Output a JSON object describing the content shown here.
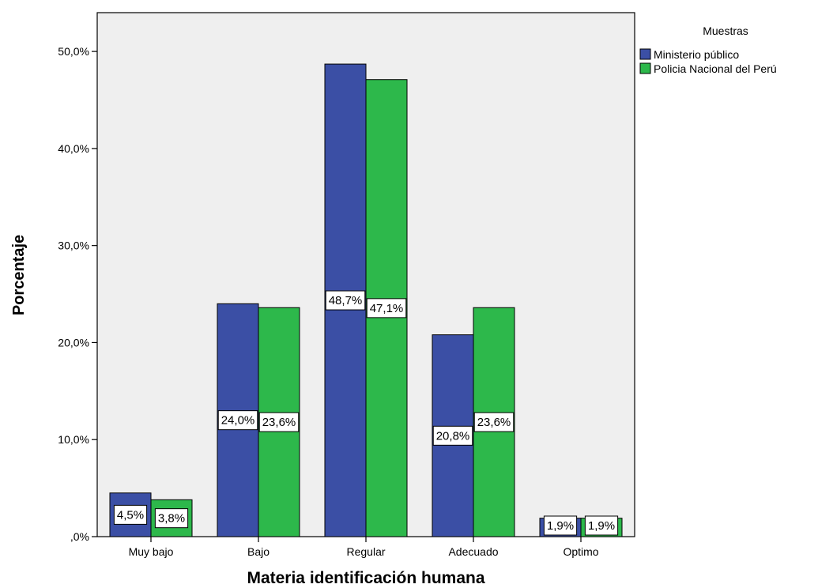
{
  "chart_data": {
    "type": "bar",
    "xlabel": "Materia identificación humana",
    "ylabel": "Porcentaje",
    "categories": [
      "Muy bajo",
      "Bajo",
      "Regular",
      "Adecuado",
      "Optimo"
    ],
    "series": [
      {
        "name": "Ministerio público",
        "values": [
          4.5,
          24.0,
          48.7,
          20.8,
          1.9
        ],
        "labels": [
          "4,5%",
          "24,0%",
          "48,7%",
          "20,8%",
          "1,9%"
        ],
        "color": "#3b4fa5"
      },
      {
        "name": "Policia Nacional del Perú",
        "values": [
          3.8,
          23.6,
          47.1,
          23.6,
          1.9
        ],
        "labels": [
          "3,8%",
          "23,6%",
          "47,1%",
          "23,6%",
          "1,9%"
        ],
        "color": "#2db84b"
      }
    ],
    "ylim": [
      0,
      54
    ],
    "yticks": [
      0,
      10,
      20,
      30,
      40,
      50
    ],
    "ytick_labels": [
      ",0%",
      "10,0%",
      "20,0%",
      "30,0%",
      "40,0%",
      "50,0%"
    ],
    "legend": {
      "title": "Muestras",
      "position": "right"
    },
    "plot_background": "#efefef",
    "grid": false
  }
}
